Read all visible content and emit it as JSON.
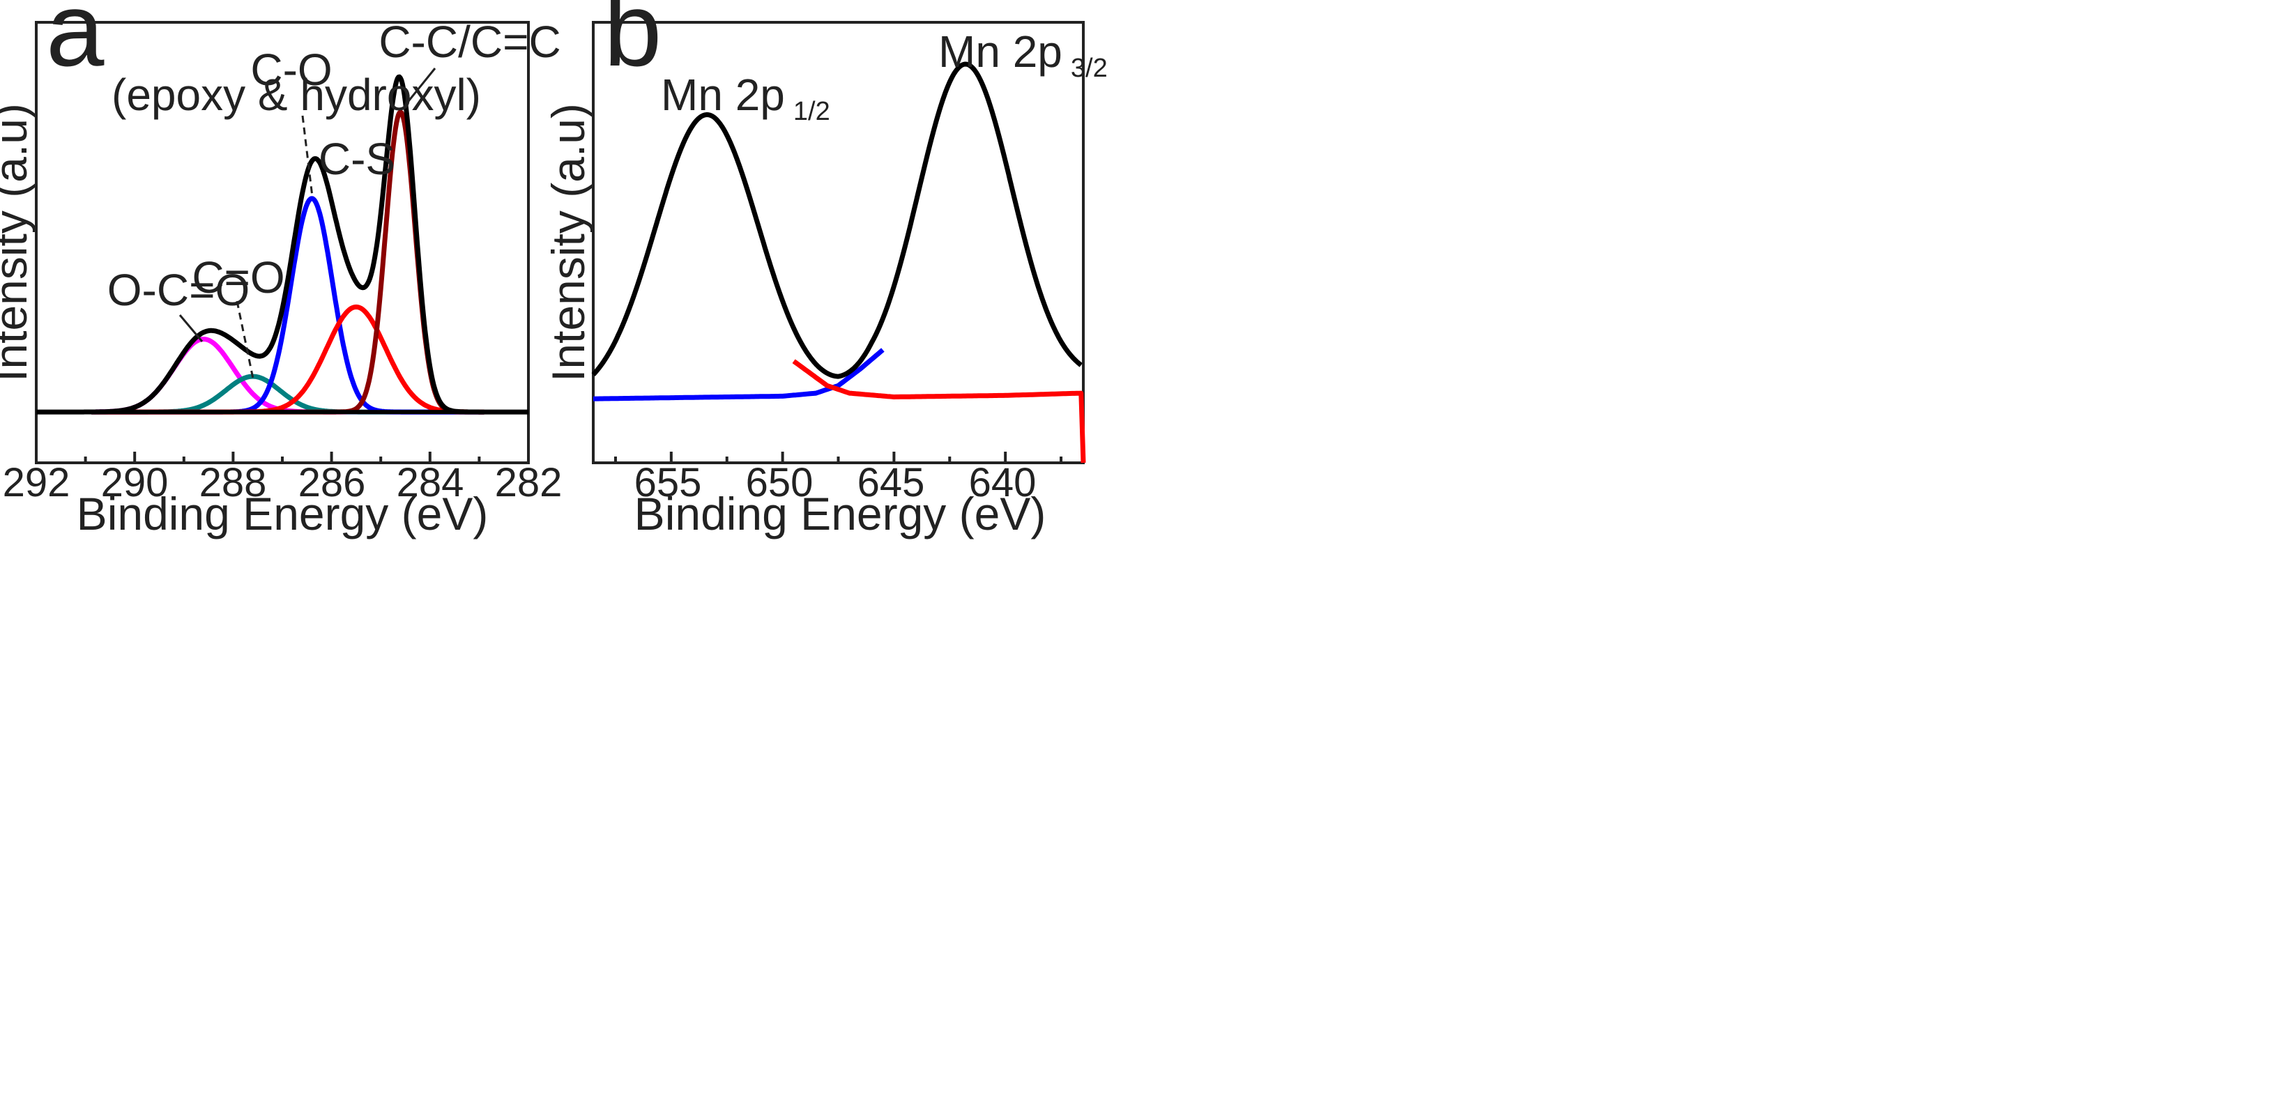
{
  "chart_data": [
    {
      "panel": "a",
      "type": "line",
      "title": "",
      "xlabel": "Binding Energy (eV)",
      "ylabel": "Intensity (a.u)",
      "xlim": [
        292,
        282
      ],
      "x_reversed": true,
      "ylim": [
        -0.15,
        1.15
      ],
      "xticks": [
        292,
        290,
        288,
        286,
        284,
        282
      ],
      "xtick_labels": [
        "292",
        "290",
        "288",
        "286",
        "284",
        "282"
      ],
      "grid": false,
      "series": [
        {
          "name": "O-C=O",
          "color": "#ff00ff",
          "center": 288.6,
          "height": 0.215,
          "sigma": 0.6
        },
        {
          "name": "C=O",
          "color": "#008080",
          "center": 287.6,
          "height": 0.105,
          "sigma": 0.55
        },
        {
          "name": "C-O (epoxy & hydroxyl)",
          "color": "#0000ff",
          "center": 286.4,
          "height": 0.63,
          "sigma": 0.42
        },
        {
          "name": "C-S",
          "color": "#ff0000",
          "center": 285.5,
          "height": 0.31,
          "sigma": 0.6
        },
        {
          "name": "C-C/C=C",
          "color": "#8b0000",
          "center": 284.6,
          "height": 0.885,
          "sigma": 0.3
        },
        {
          "name": "Envelope",
          "color": "#000000",
          "sum_of_components": true
        }
      ],
      "annotations": [
        {
          "lines": [
            "C-O",
            "(epoxy & hydroxyl)"
          ],
          "points_to": "C-O (epoxy & hydroxyl)"
        },
        {
          "lines": [
            "C-C/C=C"
          ],
          "points_to": "C-C/C=C"
        },
        {
          "lines": [
            "C-S"
          ]
        },
        {
          "lines": [
            "C=O"
          ],
          "points_to": "C=O"
        },
        {
          "lines": [
            "O-C=O"
          ],
          "points_to": "O-C=O"
        }
      ]
    },
    {
      "panel": "b",
      "type": "line",
      "title": "",
      "xlabel": "Binding Energy (eV)",
      "ylabel": "Intensity (a.u)",
      "xlim": [
        658.5,
        636.5
      ],
      "x_reversed": true,
      "ylim": [
        -0.17,
        1.0
      ],
      "xticks": [
        655,
        650,
        645,
        640
      ],
      "xtick_labels": [
        "655",
        "650",
        "645",
        "640"
      ],
      "grid": false,
      "series": [
        {
          "name": "Mn 2p envelope",
          "color": "#000000",
          "peaks": [
            {
              "center": 653.4,
              "height": 0.75,
              "sigma": 2.3
            },
            {
              "center": 641.8,
              "height": 0.85,
              "sigma": 2.1
            }
          ],
          "baseline": [
            {
              "x": 658.5,
              "y": 0.0
            },
            {
              "x": 647.5,
              "y": 0.01
            },
            {
              "x": 646.0,
              "y": 0.03
            },
            {
              "x": 636.5,
              "y": 0.05
            }
          ]
        },
        {
          "name": "Background (blue)",
          "color": "#0000ff",
          "points": [
            {
              "x": 658.5,
              "y": 0.0
            },
            {
              "x": 650,
              "y": 0.007
            },
            {
              "x": 648.5,
              "y": 0.015
            },
            {
              "x": 647.5,
              "y": 0.035
            },
            {
              "x": 646.5,
              "y": 0.08
            },
            {
              "x": 645.5,
              "y": 0.13
            }
          ]
        },
        {
          "name": "Background (red)",
          "color": "#ff0000",
          "points": [
            {
              "x": 649.5,
              "y": 0.1
            },
            {
              "x": 648,
              "y": 0.035
            },
            {
              "x": 647,
              "y": 0.015
            },
            {
              "x": 645,
              "y": 0.005
            },
            {
              "x": 640,
              "y": 0.009
            },
            {
              "x": 636.6,
              "y": 0.015
            },
            {
              "x": 636.5,
              "y": -0.17
            }
          ]
        }
      ],
      "annotations": [
        {
          "main": "Mn 2p",
          "sub": "1/2"
        },
        {
          "main": "Mn 2p",
          "sub": "3/2"
        }
      ]
    }
  ],
  "panels": {
    "a": {
      "letter": "a"
    },
    "b": {
      "letter": "b"
    }
  }
}
